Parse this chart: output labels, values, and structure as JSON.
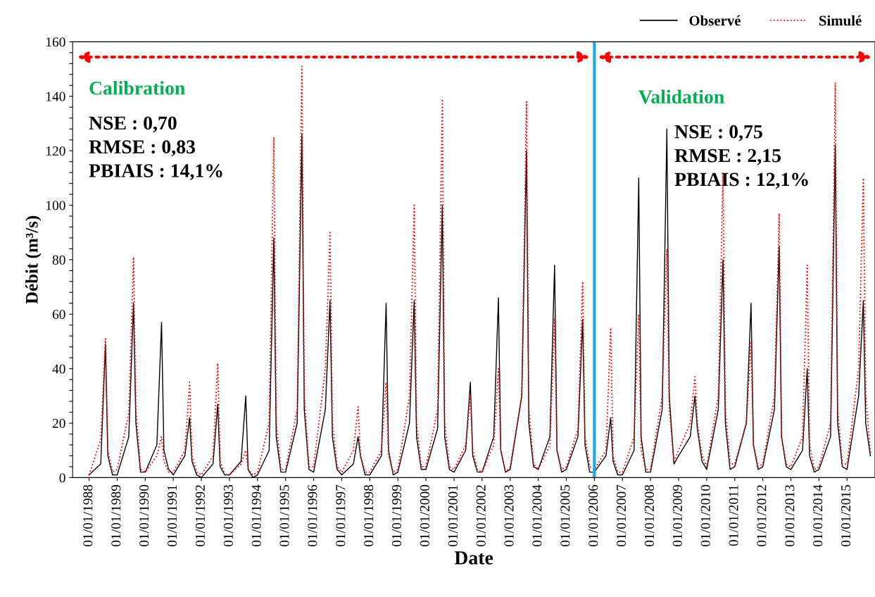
{
  "chart_data": {
    "type": "line",
    "xlabel": "Date",
    "ylabel": "Débit (m³/s)",
    "x": [
      "1988-01",
      "1988-06",
      "1988-08",
      "1988-09",
      "1988-11",
      "1989-01",
      "1989-06",
      "1989-08",
      "1989-09",
      "1989-11",
      "1990-01",
      "1990-06",
      "1990-08",
      "1990-09",
      "1990-11",
      "1991-01",
      "1991-06",
      "1991-08",
      "1991-09",
      "1991-11",
      "1992-01",
      "1992-06",
      "1992-08",
      "1992-09",
      "1992-11",
      "1993-01",
      "1993-06",
      "1993-08",
      "1993-09",
      "1993-11",
      "1994-01",
      "1994-06",
      "1994-08",
      "1994-09",
      "1994-11",
      "1995-01",
      "1995-06",
      "1995-08",
      "1995-09",
      "1995-11",
      "1996-01",
      "1996-06",
      "1996-08",
      "1996-09",
      "1996-11",
      "1997-01",
      "1997-06",
      "1997-08",
      "1997-09",
      "1997-11",
      "1998-01",
      "1998-06",
      "1998-08",
      "1998-09",
      "1998-11",
      "1999-01",
      "1999-06",
      "1999-08",
      "1999-09",
      "1999-11",
      "2000-01",
      "2000-06",
      "2000-08",
      "2000-09",
      "2000-11",
      "2001-01",
      "2001-06",
      "2001-08",
      "2001-09",
      "2001-11",
      "2002-01",
      "2002-06",
      "2002-08",
      "2002-09",
      "2002-11",
      "2003-01",
      "2003-06",
      "2003-08",
      "2003-09",
      "2003-11",
      "2004-01",
      "2004-06",
      "2004-08",
      "2004-09",
      "2004-11",
      "2005-01",
      "2005-06",
      "2005-08",
      "2005-09",
      "2005-11",
      "2006-01",
      "2006-06",
      "2006-08",
      "2006-09",
      "2006-11",
      "2007-01",
      "2007-06",
      "2007-08",
      "2007-09",
      "2007-11",
      "2008-01",
      "2008-06",
      "2008-08",
      "2008-09",
      "2008-11",
      "2009-01",
      "2009-06",
      "2009-08",
      "2009-09",
      "2009-11",
      "2010-01",
      "2010-06",
      "2010-08",
      "2010-09",
      "2010-11",
      "2011-01",
      "2011-06",
      "2011-08",
      "2011-09",
      "2011-11",
      "2012-01",
      "2012-06",
      "2012-08",
      "2012-09",
      "2012-11",
      "2013-01",
      "2013-06",
      "2013-08",
      "2013-09",
      "2013-11",
      "2014-01",
      "2014-06",
      "2014-08",
      "2014-09",
      "2014-11",
      "2015-01",
      "2015-06",
      "2015-08",
      "2015-09",
      "2015-11"
    ],
    "series": [
      {
        "name": "Observé",
        "color": "#000000",
        "line_style": "solid",
        "values": [
          1,
          5,
          49,
          8,
          1,
          1,
          15,
          64,
          20,
          2,
          2,
          12,
          57,
          10,
          3,
          1,
          8,
          22,
          6,
          1,
          0,
          5,
          27,
          4,
          1,
          1,
          6,
          30,
          3,
          0,
          1,
          10,
          88,
          15,
          2,
          2,
          20,
          126,
          25,
          3,
          2,
          25,
          65,
          15,
          3,
          1,
          5,
          15,
          8,
          1,
          1,
          8,
          64,
          10,
          1,
          2,
          20,
          65,
          15,
          3,
          3,
          18,
          100,
          15,
          3,
          2,
          10,
          35,
          8,
          2,
          2,
          15,
          66,
          10,
          2,
          3,
          30,
          120,
          20,
          4,
          3,
          15,
          78,
          10,
          2,
          3,
          15,
          58,
          12,
          2,
          2,
          8,
          22,
          6,
          1,
          1,
          10,
          110,
          15,
          2,
          2,
          25,
          128,
          30,
          5,
          8,
          15,
          30,
          18,
          6,
          3,
          25,
          80,
          20,
          3,
          4,
          20,
          64,
          12,
          3,
          4,
          25,
          85,
          15,
          4,
          3,
          10,
          40,
          8,
          2,
          3,
          15,
          122,
          20,
          4,
          3,
          30,
          65,
          20,
          8
        ]
      },
      {
        "name": "Simulé",
        "color": "#ff0000",
        "line_style": "dotted",
        "values": [
          1,
          14,
          51,
          10,
          2,
          3,
          24,
          81,
          25,
          3,
          2,
          8,
          15,
          6,
          2,
          2,
          10,
          35,
          8,
          2,
          1,
          8,
          42,
          6,
          1,
          1,
          5,
          10,
          3,
          1,
          2,
          20,
          125,
          20,
          3,
          3,
          25,
          151,
          30,
          4,
          4,
          40,
          90,
          20,
          4,
          2,
          10,
          26,
          8,
          2,
          2,
          10,
          35,
          8,
          2,
          3,
          30,
          100,
          20,
          4,
          4,
          25,
          139,
          20,
          4,
          3,
          12,
          30,
          10,
          3,
          2,
          12,
          40,
          10,
          2,
          4,
          30,
          138,
          25,
          5,
          3,
          12,
          58,
          10,
          3,
          4,
          18,
          72,
          15,
          4,
          3,
          10,
          55,
          8,
          2,
          2,
          15,
          60,
          10,
          3,
          3,
          30,
          84,
          25,
          6,
          10,
          20,
          37,
          20,
          8,
          4,
          30,
          112,
          25,
          5,
          5,
          20,
          50,
          12,
          4,
          5,
          30,
          97,
          15,
          5,
          4,
          15,
          78,
          12,
          3,
          4,
          20,
          145,
          25,
          5,
          5,
          40,
          110,
          30,
          9
        ]
      }
    ],
    "xlim": [
      "1987-06-01",
      "2015-12-31"
    ],
    "xticks": [
      {
        "value": "1988-01-01",
        "label": "01/01/1988"
      },
      {
        "value": "1989-01-01",
        "label": "01/01/1989"
      },
      {
        "value": "1990-01-01",
        "label": "01/01/1990"
      },
      {
        "value": "1991-01-01",
        "label": "01/01/1991"
      },
      {
        "value": "1992-01-01",
        "label": "01/01/1992"
      },
      {
        "value": "1993-01-01",
        "label": "01/01/1993"
      },
      {
        "value": "1994-01-01",
        "label": "01/01/1994"
      },
      {
        "value": "1995-01-01",
        "label": "01/01/1995"
      },
      {
        "value": "1996-01-01",
        "label": "01/01/1996"
      },
      {
        "value": "1997-01-01",
        "label": "01/01/1997"
      },
      {
        "value": "1998-01-01",
        "label": "01/01/1998"
      },
      {
        "value": "1999-01-01",
        "label": "01/01/1999"
      },
      {
        "value": "2000-01-01",
        "label": "01/01/2000"
      },
      {
        "value": "2001-01-01",
        "label": "01/01/2001"
      },
      {
        "value": "2002-01-01",
        "label": "01/01/2002"
      },
      {
        "value": "2003-01-01",
        "label": "01/01/2003"
      },
      {
        "value": "2004-01-01",
        "label": "01/01/2004"
      },
      {
        "value": "2005-01-01",
        "label": "01/01/2005"
      },
      {
        "value": "2006-01-01",
        "label": "01/01/2006"
      },
      {
        "value": "2007-01-01",
        "label": "01/01/2007"
      },
      {
        "value": "2008-01-01",
        "label": "01/01/2008"
      },
      {
        "value": "2009-01-01",
        "label": "01/01/2009"
      },
      {
        "value": "2010-01-01",
        "label": "01/01/2010"
      },
      {
        "value": "2011-01-01",
        "label": "01/01/2011"
      },
      {
        "value": "2012-01-01",
        "label": "01/01/2012"
      },
      {
        "value": "2013-01-01",
        "label": "01/01/2013"
      },
      {
        "value": "2014-01-01",
        "label": "01/01/2014"
      },
      {
        "value": "2015-01-01",
        "label": "01/01/2015"
      }
    ],
    "ylim": [
      0,
      160
    ],
    "yticks": [
      0,
      {
        "value": 4,
        "label": null
      },
      {
        "value": 8,
        "label": null
      },
      {
        "value": 12,
        "label": null
      },
      {
        "value": 16,
        "label": null
      },
      20,
      {
        "value": 24,
        "label": null
      },
      {
        "value": 28,
        "label": null
      },
      {
        "value": 32,
        "label": null
      },
      {
        "value": 36,
        "label": null
      },
      40,
      {
        "value": 44,
        "label": null
      },
      {
        "value": 48,
        "label": null
      },
      {
        "value": 52,
        "label": null
      },
      {
        "value": 56,
        "label": null
      },
      60,
      {
        "value": 64,
        "label": null
      },
      {
        "value": 68,
        "label": null
      },
      {
        "value": 72,
        "label": null
      },
      {
        "value": 76,
        "label": null
      },
      80,
      {
        "value": 84,
        "label": null
      },
      {
        "value": 88,
        "label": null
      },
      {
        "value": 92,
        "label": null
      },
      {
        "value": 96,
        "label": null
      },
      100,
      {
        "value": 104,
        "label": null
      },
      {
        "value": 108,
        "label": null
      },
      {
        "value": 112,
        "label": null
      },
      {
        "value": 116,
        "label": null
      },
      120,
      {
        "value": 124,
        "label": null
      },
      {
        "value": 128,
        "label": null
      },
      {
        "value": 132,
        "label": null
      },
      {
        "value": 136,
        "label": null
      },
      140,
      {
        "value": 144,
        "label": null
      },
      {
        "value": 148,
        "label": null
      },
      {
        "value": 152,
        "label": null
      },
      {
        "value": 156,
        "label": null
      },
      160
    ],
    "ref_lines": [
      {
        "axis": "x",
        "value": "2006-01-01",
        "color": "#1ea7e1",
        "line_style": "solid"
      }
    ],
    "annotations": [
      "Calibration",
      "Validation",
      "NSE : 0,70\nRMSE : 0,83\nPBIAIS : 14,1%",
      "NSE : 0,75\nRMSE : 2,15\nPBIAIS : 12,1%"
    ],
    "grid": false,
    "legend": "top right",
    "marker": "none"
  }
}
